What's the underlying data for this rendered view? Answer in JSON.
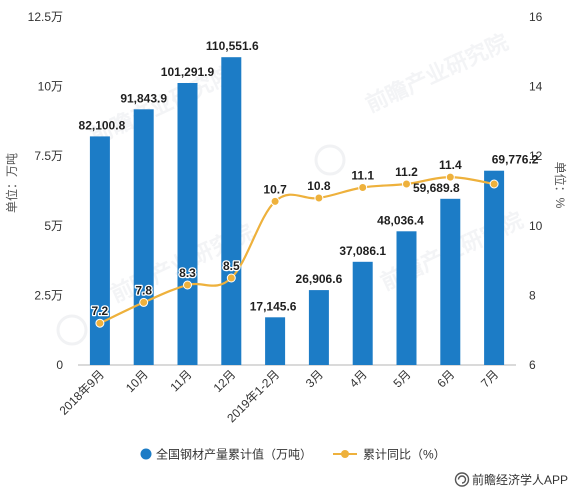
{
  "chart_data": {
    "type": "bar",
    "categories": [
      "2018年9月",
      "10月",
      "11月",
      "12月",
      "2019年1-2月",
      "3月",
      "4月",
      "5月",
      "6月",
      "7月"
    ],
    "series": [
      {
        "name": "全国钢材产量累计值（万吨）",
        "type": "bar",
        "axis": "left",
        "color": "#1c7cc6",
        "values": [
          82100.8,
          91843.9,
          101291.9,
          110551.6,
          17145.6,
          26906.6,
          37086.1,
          48036.4,
          59689.8,
          69776.2
        ],
        "labels": [
          "82,100.8",
          "91,843.9",
          "101,291.9",
          "110,551.6",
          "17,145.6",
          "26,906.6",
          "37,086.1",
          "48,036.4",
          "59,689.8",
          "69,776.2"
        ]
      },
      {
        "name": "累计同比（%）",
        "type": "line",
        "axis": "right",
        "smooth": true,
        "color": "#eeb13c",
        "values": [
          7.2,
          7.8,
          8.3,
          8.5,
          10.7,
          10.8,
          11.1,
          11.2,
          11.4,
          11.2
        ],
        "labels": [
          "7.2",
          "7.8",
          "8.3",
          "8.5",
          "10.7",
          "10.8",
          "11.1",
          "11.2",
          "11.4",
          null
        ]
      }
    ],
    "y_left": {
      "title": "单位：万吨",
      "ylim": [
        0,
        125000
      ],
      "ticks": [
        0,
        25000,
        50000,
        75000,
        100000,
        125000
      ],
      "tick_labels": [
        "0",
        "2.5万",
        "5万",
        "7.5万",
        "10万",
        "12.5万"
      ]
    },
    "y_right": {
      "title": "单位：%",
      "ylim": [
        6,
        16
      ],
      "ticks": [
        6,
        8,
        10,
        12,
        14,
        16
      ],
      "tick_labels": [
        "6",
        "8",
        "10",
        "12",
        "14",
        "16"
      ]
    },
    "grid": false,
    "legend": "bottom-center"
  },
  "watermark": "前瞻产业研究院",
  "footer": {
    "source": "前瞻经济学人APP",
    "icon": "qianzhan-logo-icon"
  }
}
